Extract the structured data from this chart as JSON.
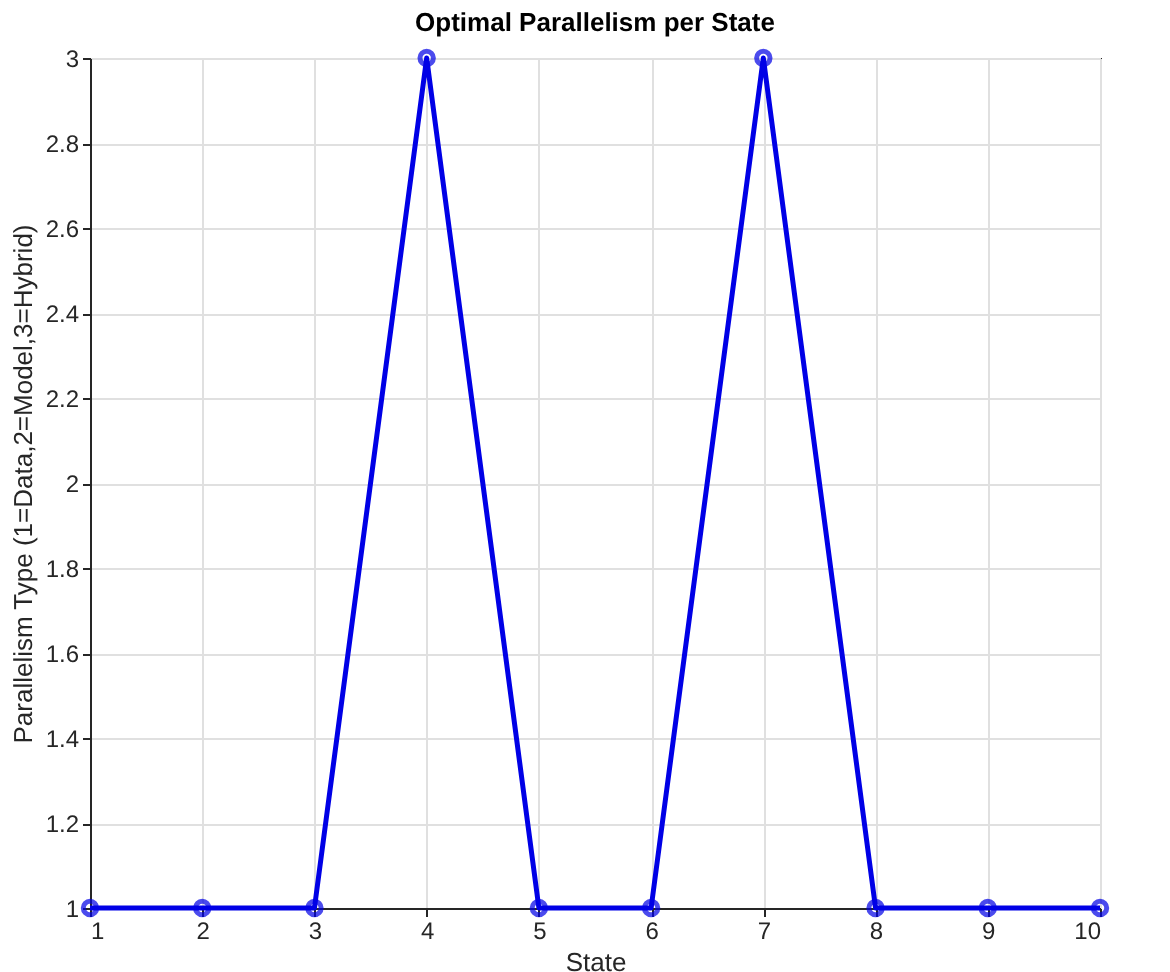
{
  "chart_data": {
    "type": "line",
    "title": "Optimal Parallelism per State",
    "xlabel": "State",
    "ylabel": "Parallelism Type (1=Data,2=Model,3=Hybrid)",
    "x": [
      1,
      2,
      3,
      4,
      5,
      6,
      7,
      8,
      9,
      10
    ],
    "series": [
      {
        "color": "#0000e6",
        "values": [
          1,
          1,
          1,
          3,
          1,
          1,
          3,
          1,
          1,
          1
        ]
      }
    ],
    "xlim": [
      1,
      10
    ],
    "xticks": [
      1,
      2,
      3,
      4,
      5,
      6,
      7,
      8,
      9,
      10
    ],
    "ylim": [
      1,
      3
    ],
    "yticks": [
      1,
      1.2,
      1.4,
      1.6,
      1.8,
      2,
      2.2,
      2.4,
      2.6,
      2.8,
      3
    ],
    "grid": true,
    "marker": "circle",
    "line_style": "solid"
  }
}
